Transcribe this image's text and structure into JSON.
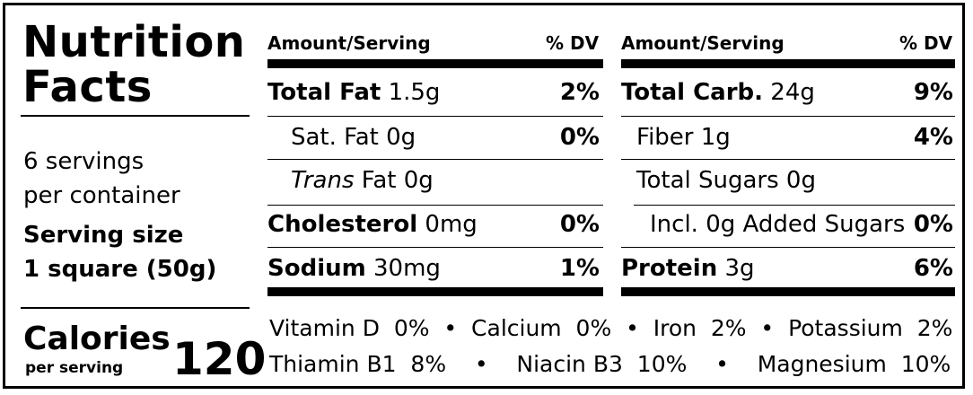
{
  "title": {
    "line1": "Nutrition",
    "line2": "Facts"
  },
  "servings": {
    "line1": "6 servings",
    "line2": "per container"
  },
  "serving_size": {
    "label": "Serving size",
    "value": "1 square (50g)"
  },
  "calories": {
    "label": "Calories",
    "sub": "per serving",
    "value": "120"
  },
  "header": {
    "amount": "Amount/Serving",
    "dv": "% DV"
  },
  "left_rows": [
    {
      "name": "Total Fat",
      "amount": "1.5g",
      "dv": "2%"
    },
    {
      "name": "Sat. Fat",
      "amount": "0g",
      "dv": "0%"
    },
    {
      "name": "Trans",
      "suffix": " Fat",
      "amount": "0g",
      "dv": ""
    },
    {
      "name": "Cholesterol",
      "amount": "0mg",
      "dv": "0%"
    },
    {
      "name": "Sodium",
      "amount": "30mg",
      "dv": "1%"
    }
  ],
  "right_rows": [
    {
      "name": "Total Carb.",
      "amount": "24g",
      "dv": "9%"
    },
    {
      "name": "Fiber",
      "amount": "1g",
      "dv": "4%"
    },
    {
      "name": "Total Sugars",
      "amount": "0g",
      "dv": ""
    },
    {
      "name": "Incl. 0g Added Sugars",
      "amount": "",
      "dv": "0%"
    },
    {
      "name": "Protein",
      "amount": "3g",
      "dv": "6%"
    }
  ],
  "vitamins": {
    "line1": "Vitamin D  0%  •  Calcium  0%  •  Iron  2%  •  Potassium  2%",
    "line2": "Thiamin B1  8%    •    Niacin B3  10%    •    Magnesium  10%"
  }
}
